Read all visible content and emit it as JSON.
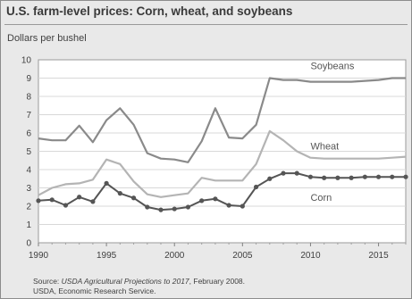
{
  "chart_data": {
    "type": "line",
    "title": "U.S. farm-level prices: Corn, wheat, and soybeans",
    "ylabel": "Dollars per bushel",
    "xlabel": "",
    "ylim": [
      0,
      10
    ],
    "xlim": [
      1990,
      2017
    ],
    "yticks": [
      0,
      1,
      2,
      3,
      4,
      5,
      6,
      7,
      8,
      9,
      10
    ],
    "xticks": [
      1990,
      1995,
      2000,
      2005,
      2010,
      2015
    ],
    "grid": true,
    "x": [
      1990,
      1991,
      1992,
      1993,
      1994,
      1995,
      1996,
      1997,
      1998,
      1999,
      2000,
      2001,
      2002,
      2003,
      2004,
      2005,
      2006,
      2007,
      2008,
      2009,
      2010,
      2011,
      2012,
      2013,
      2014,
      2015,
      2016,
      2017
    ],
    "series": [
      {
        "name": "Soybeans",
        "color": "#8a8a8a",
        "values": [
          5.7,
          5.6,
          5.6,
          6.4,
          5.5,
          6.7,
          7.35,
          6.45,
          4.9,
          4.6,
          4.55,
          4.4,
          5.55,
          7.35,
          5.75,
          5.7,
          6.45,
          9.0,
          8.9,
          8.9,
          8.8,
          8.8,
          8.8,
          8.8,
          8.85,
          8.9,
          9.0,
          9.0
        ],
        "marker": false
      },
      {
        "name": "Wheat",
        "color": "#b4b4b4",
        "values": [
          2.6,
          3.0,
          3.2,
          3.25,
          3.45,
          4.55,
          4.3,
          3.35,
          2.65,
          2.5,
          2.6,
          2.7,
          3.55,
          3.4,
          3.4,
          3.4,
          4.3,
          6.1,
          5.6,
          5.0,
          4.65,
          4.6,
          4.6,
          4.6,
          4.6,
          4.6,
          4.65,
          4.7
        ],
        "marker": false
      },
      {
        "name": "Corn",
        "color": "#555555",
        "values": [
          2.3,
          2.35,
          2.05,
          2.5,
          2.25,
          3.25,
          2.7,
          2.45,
          1.95,
          1.8,
          1.85,
          1.95,
          2.3,
          2.4,
          2.05,
          2.0,
          3.05,
          3.5,
          3.8,
          3.8,
          3.6,
          3.55,
          3.55,
          3.55,
          3.6,
          3.6,
          3.6,
          3.6
        ],
        "marker": true
      }
    ],
    "source": {
      "prefix": "Source: ",
      "italic": "USDA Agricultural Projections to 2017",
      "suffix": ", February 2008.",
      "line2": "USDA, Economic Research Service."
    }
  }
}
